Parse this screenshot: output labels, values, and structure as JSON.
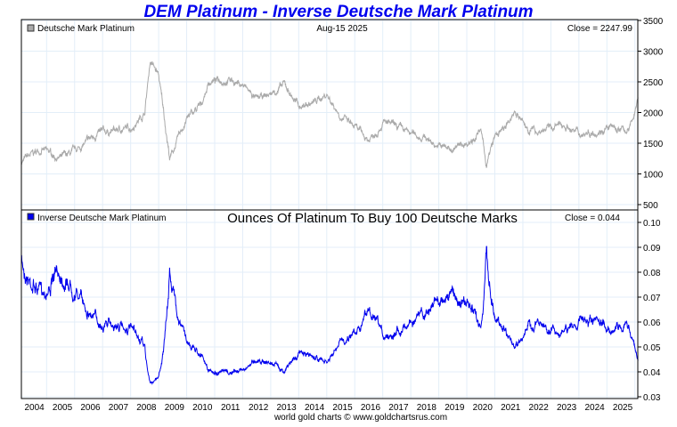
{
  "chart_data": [
    {
      "type": "line",
      "title": "DEM Platinum - Inverse Deutsche Mark Platinum",
      "legend": "Deutsche Mark Platinum",
      "date": "Aug-15  2025",
      "close_label": "Close = 2247.99",
      "color": "#aaaaaa",
      "ylim": [
        500,
        3500
      ],
      "yticks": [
        500,
        1000,
        1500,
        2000,
        2500,
        3000,
        3500
      ],
      "x": [
        2003.6,
        2004.3,
        2005.0,
        2005.5,
        2006.3,
        2006.9,
        2007.5,
        2008.0,
        2008.2,
        2008.5,
        2008.9,
        2009.5,
        2010.0,
        2010.3,
        2011.0,
        2011.5,
        2012.0,
        2012.5,
        2013.0,
        2013.5,
        2014.0,
        2014.5,
        2015.0,
        2015.5,
        2016.0,
        2016.5,
        2017.0,
        2017.5,
        2018.0,
        2018.5,
        2019.0,
        2019.5,
        2020.0,
        2020.2,
        2020.5,
        2021.0,
        2021.2,
        2021.6,
        2022.0,
        2022.5,
        2023.0,
        2023.5,
        2024.0,
        2024.5,
        2025.3,
        2025.62
      ],
      "values": [
        1200,
        1400,
        1250,
        1350,
        1650,
        1700,
        1750,
        2000,
        2850,
        2600,
        1250,
        1900,
        2100,
        2500,
        2550,
        2450,
        2200,
        2300,
        2450,
        2100,
        2150,
        2300,
        1950,
        1750,
        1550,
        1850,
        1750,
        1650,
        1600,
        1450,
        1400,
        1500,
        1700,
        1150,
        1600,
        1800,
        2050,
        1750,
        1700,
        1750,
        1800,
        1650,
        1700,
        1750,
        1700,
        2248
      ]
    },
    {
      "type": "line",
      "legend": "Inverse Deutsche Mark Platinum",
      "subtitle": "Ounces Of Platinum To Buy 100 Deutsche Marks",
      "close_label": "Close = 0.044",
      "color": "#0000ee",
      "ylim": [
        0.03,
        0.1
      ],
      "yticks": [
        "0.03",
        "0.04",
        "0.05",
        "0.06",
        "0.07",
        "0.08",
        "0.09",
        "0.10"
      ],
      "derived": "100 / Deutsche Mark Platinum"
    }
  ],
  "xaxis": {
    "ticks": [
      "2004",
      "2005",
      "2006",
      "2007",
      "2008",
      "2009",
      "2010",
      "2011",
      "2012",
      "2013",
      "2014",
      "2015",
      "2016",
      "2017",
      "2018",
      "2019",
      "2020",
      "2021",
      "2022",
      "2023",
      "2024",
      "2025"
    ]
  },
  "footer": "world gold charts © www.goldchartsrus.com"
}
